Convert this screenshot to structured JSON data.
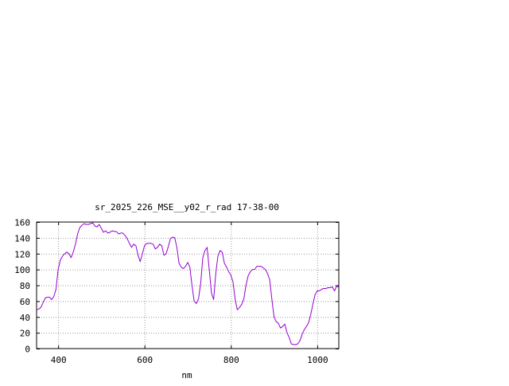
{
  "chart_data": {
    "type": "line",
    "title": "sr_2025_226_MSE__y02_r_rad 17-38-00",
    "xlabel": "nm",
    "ylabel": "",
    "xlim": [
      350,
      1050
    ],
    "ylim": [
      0,
      160
    ],
    "xticks": [
      400,
      600,
      800,
      1000
    ],
    "yticks": [
      0,
      20,
      40,
      60,
      80,
      100,
      120,
      140,
      160
    ],
    "xtick_labels": [
      "400",
      "600",
      "800",
      "1000"
    ],
    "ytick_labels": [
      "0",
      "20",
      "40",
      "60",
      "80",
      "100",
      "120",
      "140",
      "160"
    ],
    "grid": true,
    "line_color": "#9400d3",
    "series": [
      {
        "x": [
          350,
          355,
          360,
          365,
          370,
          375,
          380,
          385,
          390,
          395,
          400,
          405,
          410,
          415,
          420,
          425,
          430,
          435,
          440,
          445,
          450,
          455,
          460,
          465,
          470,
          475,
          480,
          485,
          490,
          495,
          500,
          505,
          510,
          515,
          520,
          525,
          530,
          535,
          540,
          545,
          550,
          555,
          560,
          565,
          570,
          575,
          580,
          585,
          590,
          595,
          600,
          605,
          610,
          615,
          620,
          625,
          630,
          635,
          640,
          645,
          650,
          655,
          660,
          665,
          670,
          675,
          680,
          685,
          690,
          695,
          700,
          705,
          710,
          715,
          720,
          725,
          730,
          735,
          740,
          745,
          750,
          755,
          760,
          765,
          770,
          775,
          780,
          785,
          790,
          795,
          800,
          805,
          810,
          815,
          820,
          825,
          830,
          835,
          840,
          845,
          850,
          855,
          860,
          865,
          870,
          875,
          880,
          885,
          890,
          895,
          900,
          905,
          910,
          915,
          920,
          925,
          930,
          935,
          940,
          945,
          950,
          955,
          960,
          965,
          970,
          975,
          980,
          985,
          990,
          995,
          1000,
          1005,
          1010,
          1015,
          1020,
          1025,
          1030,
          1035,
          1040,
          1045,
          1050
        ],
        "y": [
          49,
          50,
          52,
          58,
          64,
          65,
          65,
          62,
          66,
          75,
          100,
          112,
          117,
          120,
          122,
          120,
          115,
          122,
          132,
          145,
          153,
          156,
          158,
          157,
          157,
          158,
          159,
          155,
          154,
          157,
          152,
          147,
          149,
          146,
          147,
          149,
          148,
          148,
          145,
          146,
          146,
          143,
          139,
          133,
          128,
          132,
          130,
          118,
          110,
          120,
          130,
          133,
          133,
          133,
          132,
          126,
          128,
          132,
          130,
          118,
          120,
          129,
          139,
          141,
          140,
          128,
          108,
          103,
          101,
          104,
          109,
          103,
          80,
          60,
          57,
          63,
          82,
          115,
          124,
          128,
          100,
          70,
          62,
          95,
          117,
          124,
          122,
          108,
          103,
          97,
          93,
          84,
          62,
          49,
          52,
          56,
          63,
          80,
          92,
          97,
          100,
          100,
          104,
          104,
          104,
          102,
          100,
          95,
          87,
          62,
          40,
          34,
          32,
          26,
          28,
          31,
          20,
          14,
          6,
          5,
          5,
          6,
          10,
          18,
          24,
          28,
          33,
          43,
          56,
          68,
          73,
          73,
          75,
          76,
          76,
          77,
          77,
          78,
          73,
          79,
          78
        ]
      }
    ]
  }
}
